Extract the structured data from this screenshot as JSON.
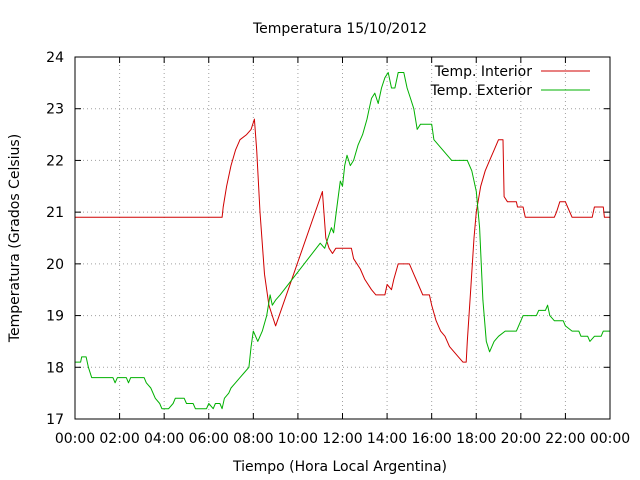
{
  "chart_data": {
    "type": "line",
    "title": "Temperatura 15/10/2012",
    "xlabel": "Tiempo (Hora Local Argentina)",
    "ylabel": "Temperatura (Grados Celsius)",
    "xlim": [
      0,
      24
    ],
    "ylim": [
      17,
      24
    ],
    "grid": true,
    "legend_position": "top-right",
    "x_ticks": [
      {
        "value": 0,
        "label": "00:00"
      },
      {
        "value": 2,
        "label": "02:00"
      },
      {
        "value": 4,
        "label": "04:00"
      },
      {
        "value": 6,
        "label": "06:00"
      },
      {
        "value": 8,
        "label": "08:00"
      },
      {
        "value": 10,
        "label": "10:00"
      },
      {
        "value": 12,
        "label": "12:00"
      },
      {
        "value": 14,
        "label": "14:00"
      },
      {
        "value": 16,
        "label": "16:00"
      },
      {
        "value": 18,
        "label": "18:00"
      },
      {
        "value": 20,
        "label": "20:00"
      },
      {
        "value": 22,
        "label": "22:00"
      },
      {
        "value": 24,
        "label": "00:00"
      }
    ],
    "y_ticks": [
      {
        "value": 17,
        "label": "17"
      },
      {
        "value": 18,
        "label": "18"
      },
      {
        "value": 19,
        "label": "19"
      },
      {
        "value": 20,
        "label": "20"
      },
      {
        "value": 21,
        "label": "21"
      },
      {
        "value": 22,
        "label": "22"
      },
      {
        "value": 23,
        "label": "23"
      },
      {
        "value": 24,
        "label": "24"
      }
    ],
    "series": [
      {
        "name": "Temp. Interior",
        "color": "#d00000",
        "points": [
          [
            0,
            20.9
          ],
          [
            6.6,
            20.9
          ],
          [
            6.65,
            21.1
          ],
          [
            6.8,
            21.5
          ],
          [
            7.0,
            21.9
          ],
          [
            7.2,
            22.2
          ],
          [
            7.4,
            22.4
          ],
          [
            7.7,
            22.5
          ],
          [
            7.9,
            22.6
          ],
          [
            8.05,
            22.8
          ],
          [
            8.15,
            22.2
          ],
          [
            8.3,
            21.0
          ],
          [
            8.5,
            19.8
          ],
          [
            8.7,
            19.2
          ],
          [
            9.0,
            18.8
          ],
          [
            11.1,
            21.4
          ],
          [
            11.25,
            20.5
          ],
          [
            11.4,
            20.3
          ],
          [
            11.55,
            20.2
          ],
          [
            11.7,
            20.3
          ],
          [
            12.4,
            20.3
          ],
          [
            12.5,
            20.1
          ],
          [
            12.8,
            19.9
          ],
          [
            13.0,
            19.7
          ],
          [
            13.3,
            19.5
          ],
          [
            13.5,
            19.4
          ],
          [
            13.9,
            19.4
          ],
          [
            14.0,
            19.6
          ],
          [
            14.2,
            19.5
          ],
          [
            14.3,
            19.7
          ],
          [
            14.5,
            20.0
          ],
          [
            15.0,
            20.0
          ],
          [
            15.2,
            19.8
          ],
          [
            15.4,
            19.6
          ],
          [
            15.6,
            19.4
          ],
          [
            15.9,
            19.4
          ],
          [
            16.0,
            19.2
          ],
          [
            16.2,
            18.9
          ],
          [
            16.4,
            18.7
          ],
          [
            16.6,
            18.6
          ],
          [
            16.8,
            18.4
          ],
          [
            17.0,
            18.3
          ],
          [
            17.2,
            18.2
          ],
          [
            17.4,
            18.1
          ],
          [
            17.55,
            18.1
          ],
          [
            17.6,
            18.5
          ],
          [
            17.75,
            19.5
          ],
          [
            17.9,
            20.5
          ],
          [
            18.0,
            21.0
          ],
          [
            18.2,
            21.5
          ],
          [
            18.4,
            21.8
          ],
          [
            18.6,
            22.0
          ],
          [
            18.8,
            22.2
          ],
          [
            19.0,
            22.4
          ],
          [
            19.2,
            22.4
          ],
          [
            19.25,
            21.3
          ],
          [
            19.4,
            21.2
          ],
          [
            19.8,
            21.2
          ],
          [
            19.85,
            21.1
          ],
          [
            20.1,
            21.1
          ],
          [
            20.2,
            20.9
          ],
          [
            21.5,
            20.9
          ],
          [
            21.6,
            21.0
          ],
          [
            21.75,
            21.2
          ],
          [
            22.0,
            21.2
          ],
          [
            22.1,
            21.1
          ],
          [
            22.3,
            20.9
          ],
          [
            23.2,
            20.9
          ],
          [
            23.3,
            21.1
          ],
          [
            23.7,
            21.1
          ],
          [
            23.75,
            20.9
          ],
          [
            24.0,
            20.9
          ]
        ]
      },
      {
        "name": "Temp. Exterior",
        "color": "#00b000",
        "points": [
          [
            0,
            18.1
          ],
          [
            0.25,
            18.1
          ],
          [
            0.3,
            18.2
          ],
          [
            0.5,
            18.2
          ],
          [
            0.6,
            18.0
          ],
          [
            0.75,
            17.8
          ],
          [
            1.0,
            17.8
          ],
          [
            1.7,
            17.8
          ],
          [
            1.8,
            17.7
          ],
          [
            1.9,
            17.8
          ],
          [
            2.3,
            17.8
          ],
          [
            2.4,
            17.7
          ],
          [
            2.5,
            17.8
          ],
          [
            3.1,
            17.8
          ],
          [
            3.2,
            17.7
          ],
          [
            3.4,
            17.6
          ],
          [
            3.6,
            17.4
          ],
          [
            3.8,
            17.3
          ],
          [
            3.9,
            17.2
          ],
          [
            4.2,
            17.2
          ],
          [
            4.4,
            17.3
          ],
          [
            4.5,
            17.4
          ],
          [
            4.9,
            17.4
          ],
          [
            5.0,
            17.3
          ],
          [
            5.3,
            17.3
          ],
          [
            5.4,
            17.2
          ],
          [
            5.9,
            17.2
          ],
          [
            6.0,
            17.3
          ],
          [
            6.2,
            17.2
          ],
          [
            6.3,
            17.3
          ],
          [
            6.5,
            17.3
          ],
          [
            6.6,
            17.2
          ],
          [
            6.7,
            17.4
          ],
          [
            6.9,
            17.5
          ],
          [
            7.0,
            17.6
          ],
          [
            7.2,
            17.7
          ],
          [
            7.4,
            17.8
          ],
          [
            7.6,
            17.9
          ],
          [
            7.8,
            18.0
          ],
          [
            7.9,
            18.4
          ],
          [
            8.0,
            18.7
          ],
          [
            8.1,
            18.6
          ],
          [
            8.2,
            18.5
          ],
          [
            8.3,
            18.6
          ],
          [
            8.4,
            18.7
          ],
          [
            8.6,
            19.0
          ],
          [
            8.75,
            19.4
          ],
          [
            8.85,
            19.2
          ],
          [
            9.0,
            19.3
          ],
          [
            9.2,
            19.4
          ],
          [
            11.0,
            20.4
          ],
          [
            11.2,
            20.3
          ],
          [
            11.35,
            20.5
          ],
          [
            11.5,
            20.7
          ],
          [
            11.6,
            20.6
          ],
          [
            11.75,
            21.1
          ],
          [
            11.9,
            21.6
          ],
          [
            12.0,
            21.5
          ],
          [
            12.1,
            21.9
          ],
          [
            12.2,
            22.1
          ],
          [
            12.35,
            21.9
          ],
          [
            12.5,
            22.0
          ],
          [
            12.7,
            22.3
          ],
          [
            12.9,
            22.5
          ],
          [
            13.1,
            22.8
          ],
          [
            13.2,
            23.0
          ],
          [
            13.3,
            23.2
          ],
          [
            13.45,
            23.3
          ],
          [
            13.6,
            23.1
          ],
          [
            13.75,
            23.4
          ],
          [
            13.9,
            23.6
          ],
          [
            14.05,
            23.7
          ],
          [
            14.2,
            23.4
          ],
          [
            14.35,
            23.4
          ],
          [
            14.5,
            23.7
          ],
          [
            14.75,
            23.7
          ],
          [
            14.9,
            23.4
          ],
          [
            15.05,
            23.2
          ],
          [
            15.2,
            23.0
          ],
          [
            15.35,
            22.6
          ],
          [
            15.5,
            22.7
          ],
          [
            16.0,
            22.7
          ],
          [
            16.1,
            22.4
          ],
          [
            16.3,
            22.3
          ],
          [
            16.5,
            22.2
          ],
          [
            16.7,
            22.1
          ],
          [
            16.9,
            22.0
          ],
          [
            17.6,
            22.0
          ],
          [
            17.8,
            21.8
          ],
          [
            18.0,
            21.4
          ],
          [
            18.15,
            20.7
          ],
          [
            18.3,
            19.3
          ],
          [
            18.45,
            18.5
          ],
          [
            18.6,
            18.3
          ],
          [
            18.8,
            18.5
          ],
          [
            19.0,
            18.6
          ],
          [
            19.3,
            18.7
          ],
          [
            19.8,
            18.7
          ],
          [
            19.9,
            18.8
          ],
          [
            20.1,
            19.0
          ],
          [
            20.7,
            19.0
          ],
          [
            20.8,
            19.1
          ],
          [
            21.1,
            19.1
          ],
          [
            21.2,
            19.2
          ],
          [
            21.3,
            19.0
          ],
          [
            21.5,
            18.9
          ],
          [
            21.9,
            18.9
          ],
          [
            22.0,
            18.8
          ],
          [
            22.3,
            18.7
          ],
          [
            22.6,
            18.7
          ],
          [
            22.7,
            18.6
          ],
          [
            23.0,
            18.6
          ],
          [
            23.1,
            18.5
          ],
          [
            23.3,
            18.6
          ],
          [
            23.6,
            18.6
          ],
          [
            23.7,
            18.7
          ],
          [
            24.0,
            18.7
          ]
        ]
      }
    ]
  }
}
